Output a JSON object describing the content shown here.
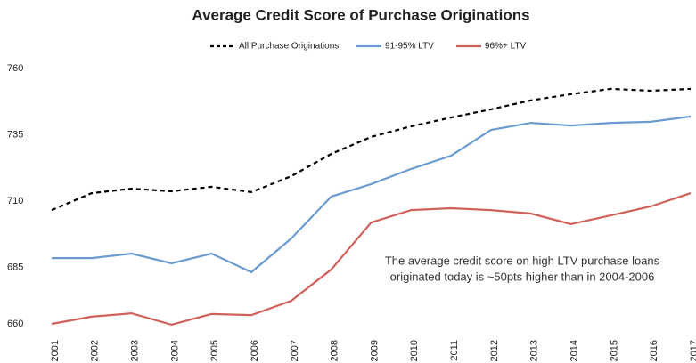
{
  "chart_data": {
    "type": "line",
    "title": "Average Credit Score of Purchase Originations",
    "annotation": [
      "The average credit score on high LTV purchase loans",
      "originated today is ~50pts higher than in 2004-2006"
    ],
    "categories": [
      "2001",
      "2002",
      "2003",
      "2004",
      "2005",
      "2006",
      "2007",
      "2008",
      "2009",
      "2010",
      "2011",
      "2012",
      "2013",
      "2014",
      "2015",
      "2016",
      "2017"
    ],
    "series": [
      {
        "name": "All Purchase Originations",
        "color": "#000000",
        "dashed": true,
        "values": [
          706.6,
          713,
          714.7,
          713.7,
          715.4,
          713.4,
          719.4,
          727.8,
          734.2,
          738.2,
          741.5,
          744.6,
          748,
          750.3,
          752.3,
          751.6,
          752.3
        ]
      },
      {
        "name": "91-95% LTV",
        "color": "#6b9bcf",
        "dashed": false,
        "values": [
          688.5,
          688.5,
          690.2,
          686.5,
          690.2,
          683.2,
          695.9,
          711.7,
          716.4,
          722.1,
          727.1,
          736.8,
          739.5,
          738.5,
          739.5,
          739.9,
          741.9
        ]
      },
      {
        "name": "96%+ LTV",
        "color": "#d0605a",
        "dashed": false,
        "values": [
          663.7,
          666.4,
          667.7,
          663.4,
          667.4,
          667,
          672.4,
          684.2,
          701.9,
          706.6,
          707.3,
          706.6,
          705.3,
          701.3,
          704.6,
          708,
          713
        ]
      }
    ],
    "ylim": [
      660,
      760
    ],
    "yticks": [
      660,
      685,
      710,
      735,
      760
    ],
    "grid": false
  }
}
